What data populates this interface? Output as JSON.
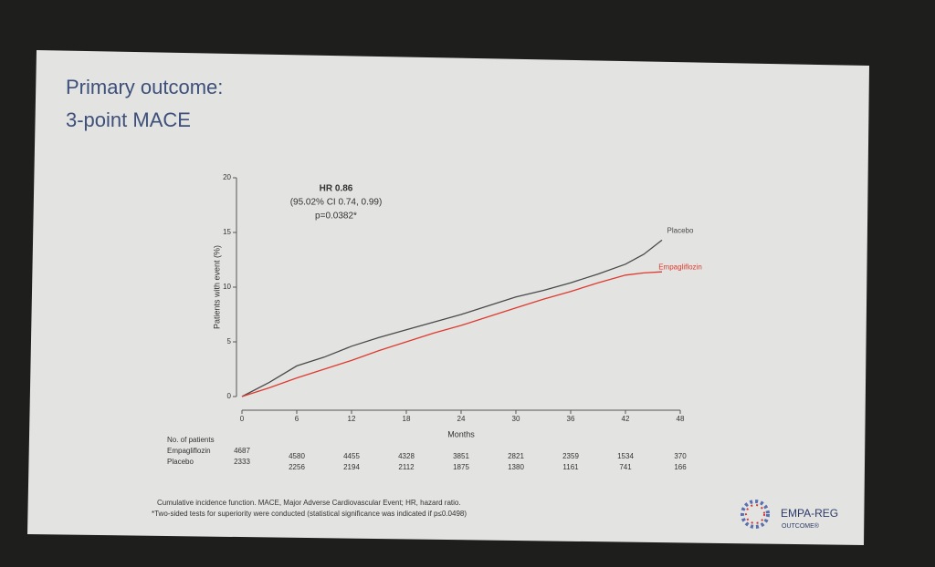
{
  "chart_data": {
    "type": "line",
    "title": [
      "Primary outcome:",
      "3-point MACE"
    ],
    "ylabel": "Patients with event (%)",
    "xlabel": "Months",
    "annotations": [
      "HR 0.86",
      "(95.02% CI 0.74, 0.99)",
      "p=0.0382*"
    ],
    "x": [
      0,
      3,
      6,
      9,
      12,
      15,
      18,
      21,
      24,
      27,
      30,
      33,
      36,
      39,
      42,
      44,
      46
    ],
    "series": [
      {
        "name": "Placebo",
        "color": "#4a4a4a",
        "values": [
          0,
          1.3,
          2.8,
          3.6,
          4.6,
          5.4,
          6.1,
          6.8,
          7.5,
          8.3,
          9.1,
          9.7,
          10.4,
          11.2,
          12.1,
          13.0,
          14.3
        ]
      },
      {
        "name": "Empagliflozin",
        "color": "#e0392f",
        "values": [
          0,
          0.8,
          1.7,
          2.5,
          3.3,
          4.2,
          5.0,
          5.8,
          6.5,
          7.3,
          8.1,
          8.9,
          9.6,
          10.4,
          11.1,
          11.3,
          11.4
        ]
      }
    ],
    "xlim": [
      0,
      48
    ],
    "ylim": [
      0,
      20
    ],
    "xticks": [
      0,
      6,
      12,
      18,
      24,
      30,
      36,
      42,
      48
    ],
    "yticks": [
      0,
      5,
      10,
      15,
      20
    ],
    "at_risk": {
      "title": "No. of patients",
      "rows": [
        {
          "name": "Empagliflozin",
          "values": [
            4687,
            4580,
            4455,
            4328,
            3851,
            2821,
            2359,
            1534,
            370
          ]
        },
        {
          "name": "Placebo",
          "values": [
            2333,
            2256,
            2194,
            2112,
            1875,
            1380,
            1161,
            741,
            166
          ]
        }
      ]
    }
  },
  "footnotes": [
    "Cumulative incidence function. MACE, Major Adverse Cardiovascular Event; HR, hazard ratio.",
    "*Two-sided tests for superiority were conducted (statistical significance was indicated if p≤0.0498)"
  ],
  "logo": [
    "EMPA-REG",
    "OUTCOME®"
  ]
}
